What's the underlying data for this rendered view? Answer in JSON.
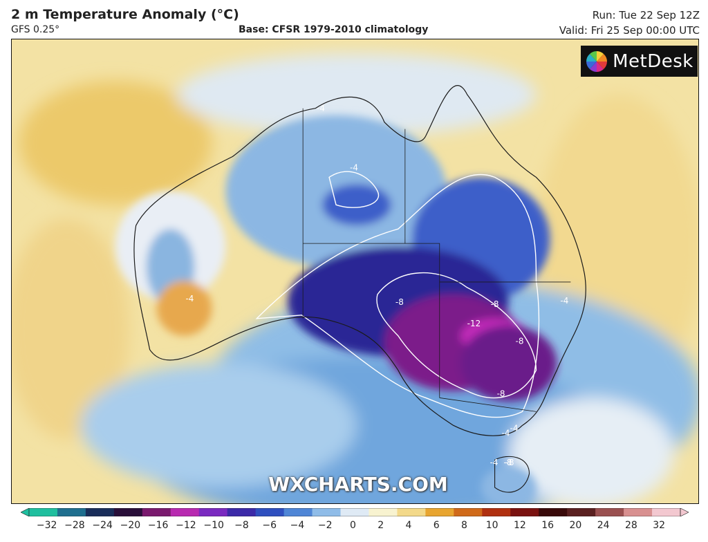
{
  "header": {
    "title": "2 m Temperature Anomaly (°C)",
    "model": "GFS 0.25°",
    "base": "Base: CFSR 1979-2010 climatology",
    "run": "Run: Tue 22 Sep 12Z",
    "valid": "Valid: Fri 25 Sep 00:00 UTC"
  },
  "logo": {
    "text": "MetDesk",
    "icon": "metdesk-pinwheel-icon"
  },
  "watermark": "WXCHARTS.COM",
  "contour_labels": [
    "-4",
    "-4",
    "-4",
    "-4",
    "-4",
    "-4",
    "-8",
    "-8",
    "-8",
    "-8",
    "-8",
    "-12",
    "-4",
    "-8"
  ],
  "colorbar": {
    "ticks": [
      "−32",
      "−28",
      "−24",
      "−20",
      "−16",
      "−12",
      "−10",
      "−8",
      "−6",
      "−4",
      "−2",
      "0",
      "2",
      "4",
      "6",
      "8",
      "10",
      "12",
      "16",
      "20",
      "24",
      "28",
      "32"
    ],
    "colors": [
      "#1fbf9f",
      "#1f6f8f",
      "#1a2e5a",
      "#2a0f3a",
      "#7a1a6e",
      "#b82ab0",
      "#7a2ac0",
      "#3c2aa8",
      "#2f4fbf",
      "#4f86d6",
      "#8fbce8",
      "#dfeaf5",
      "#f8f3d0",
      "#f3d98a",
      "#e8a530",
      "#d06a1a",
      "#b03010",
      "#7a1210",
      "#3a0a0a",
      "#5a2020",
      "#9a5050",
      "#d89090",
      "#f3c8d0"
    ]
  },
  "legend_colors": {
    "deep_purple": "#7c1a8a",
    "dark_blue": "#2a1f8f",
    "blue": "#3d5fc9",
    "light_blue": "#8cb7e3",
    "pale": "#e8eef5",
    "pale_yellow": "#f6e7b0",
    "yellow": "#f0d27a",
    "orange": "#e6a84a"
  }
}
